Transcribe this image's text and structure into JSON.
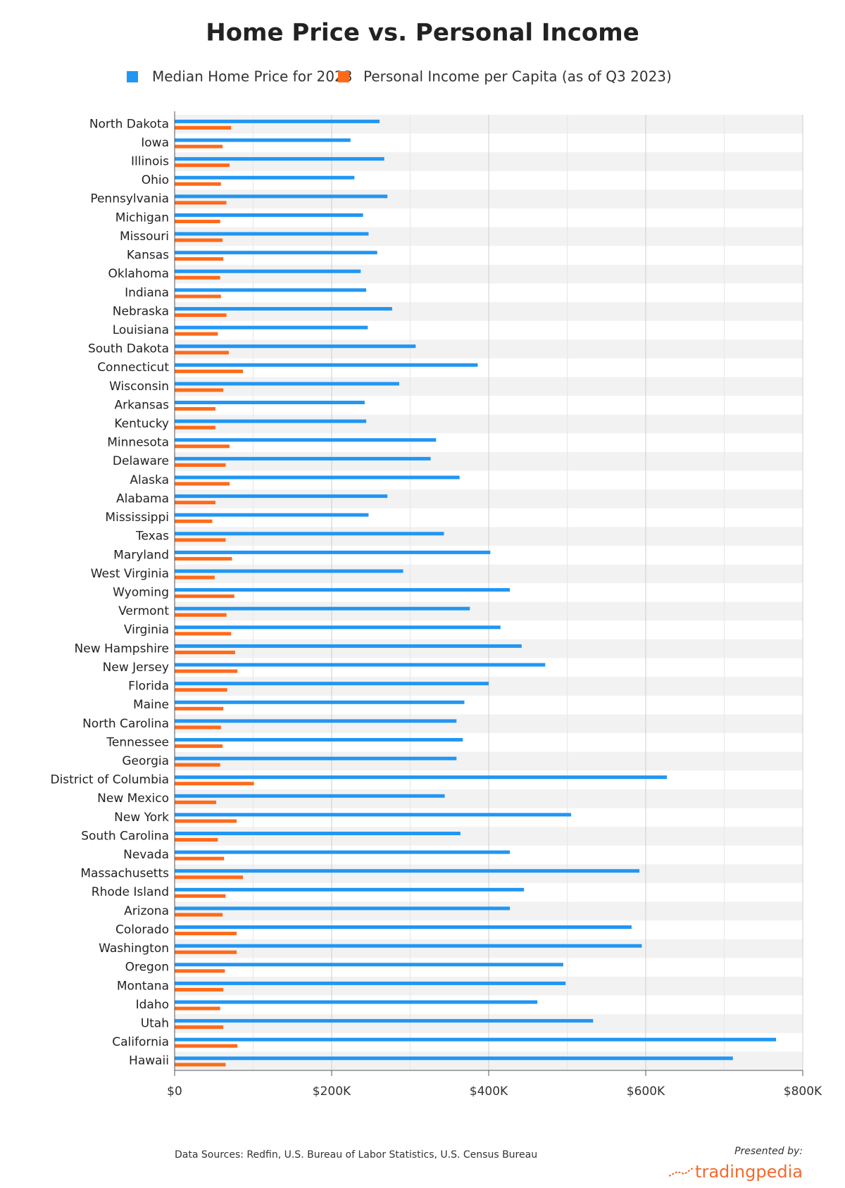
{
  "chart_data": {
    "type": "hbar",
    "title": "Home Price vs. Personal Income",
    "categories": [
      "North Dakota",
      "Iowa",
      "Illinois",
      "Ohio",
      "Pennsylvania",
      "Michigan",
      "Missouri",
      "Kansas",
      "Oklahoma",
      "Indiana",
      "Nebraska",
      "Louisiana",
      "South Dakota",
      "Connecticut",
      "Wisconsin",
      "Arkansas",
      "Kentucky",
      "Minnesota",
      "Delaware",
      "Alaska",
      "Alabama",
      "Mississippi",
      "Texas",
      "Maryland",
      "West Virginia",
      "Wyoming",
      "Vermont",
      "Virginia",
      "New Hampshire",
      "New Jersey",
      "Florida",
      "Maine",
      "North Carolina",
      "Tennessee",
      "Georgia",
      "District of Columbia",
      "New Mexico",
      "New York",
      "South Carolina",
      "Nevada",
      "Massachusetts",
      "Rhode Island",
      "Arizona",
      "Colorado",
      "Washington",
      "Oregon",
      "Montana",
      "Idaho",
      "Utah",
      "California",
      "Hawaii"
    ],
    "series": [
      {
        "name": "Median Home Price for 2023",
        "color": "#2196f3",
        "values": [
          261000,
          224000,
          267000,
          229000,
          271000,
          240000,
          247000,
          258000,
          237000,
          244000,
          277000,
          246000,
          307000,
          386000,
          286000,
          242000,
          244000,
          333000,
          326000,
          363000,
          271000,
          247000,
          343000,
          402000,
          291000,
          427000,
          376000,
          415000,
          442000,
          472000,
          400000,
          369000,
          359000,
          367000,
          359000,
          627000,
          344000,
          505000,
          364000,
          427000,
          592000,
          445000,
          427000,
          582000,
          595000,
          495000,
          498000,
          462000,
          533000,
          766000,
          711000
        ]
      },
      {
        "name": "Personal Income per Capita (as of Q3 2023)",
        "color": "#ff6a1a",
        "values": [
          72000,
          61000,
          70000,
          59000,
          66000,
          58000,
          61000,
          62000,
          58000,
          59000,
          66000,
          55000,
          69000,
          87000,
          62000,
          52000,
          52000,
          70000,
          65000,
          70000,
          52000,
          48000,
          65000,
          73000,
          51000,
          76000,
          66000,
          72000,
          77000,
          80000,
          67000,
          62000,
          59000,
          61000,
          58000,
          101000,
          53000,
          79000,
          55000,
          63000,
          87000,
          65000,
          61000,
          79000,
          79000,
          64000,
          62000,
          58000,
          62000,
          80000,
          65000
        ]
      }
    ],
    "xlim": [
      0,
      800000
    ],
    "xticks": [
      {
        "value": 0,
        "label": "$0"
      },
      {
        "value": 200000,
        "label": "$200K"
      },
      {
        "value": 400000,
        "label": "$400K"
      },
      {
        "value": 600000,
        "label": "$600K"
      },
      {
        "value": 800000,
        "label": "$800K"
      }
    ],
    "minor_grid": [
      100000,
      300000,
      500000,
      700000
    ],
    "grid": true,
    "legend": "top",
    "source": "Data Sources: Redfin, U.S. Bureau of Labor Statistics, U.S. Census Bureau",
    "presented_by": "Presented by:",
    "brand": "tradingpedia"
  }
}
